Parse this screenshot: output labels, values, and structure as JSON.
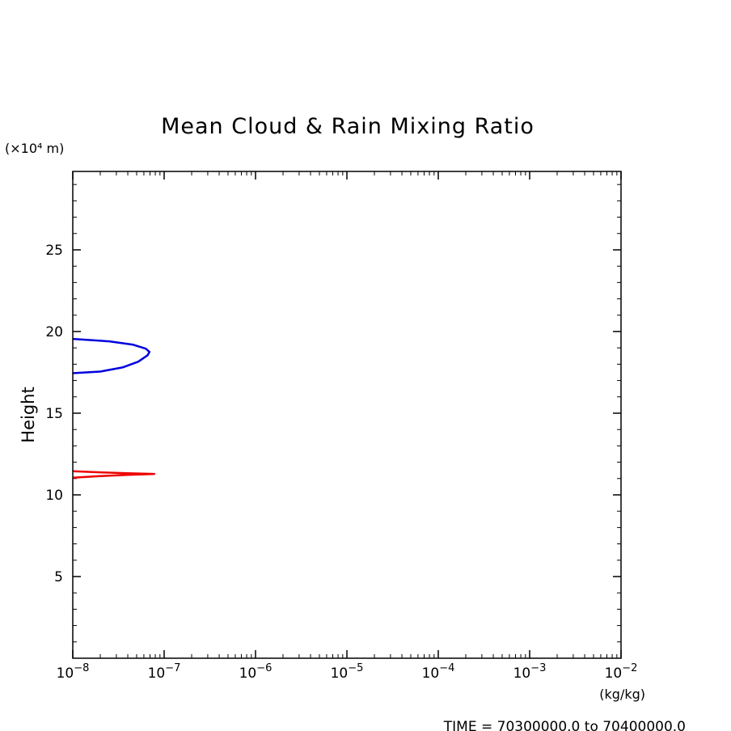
{
  "chart_data": {
    "type": "line",
    "title": "Mean Cloud & Rain Mixing Ratio",
    "ylabel": "Height",
    "y_unit": "(×10⁴ m)",
    "x_unit": "(kg/kg)",
    "xscale": "log",
    "xlim": [
      1e-08,
      0.01
    ],
    "ylim": [
      0,
      29.8
    ],
    "x_ticks": [
      {
        "value": 1e-08,
        "mantissa": "10",
        "exp": "−8"
      },
      {
        "value": 1e-07,
        "mantissa": "10",
        "exp": "−7"
      },
      {
        "value": 1e-06,
        "mantissa": "10",
        "exp": "−6"
      },
      {
        "value": 1e-05,
        "mantissa": "10",
        "exp": "−5"
      },
      {
        "value": 0.0001,
        "mantissa": "10",
        "exp": "−4"
      },
      {
        "value": 0.001,
        "mantissa": "10",
        "exp": "−3"
      },
      {
        "value": 0.01,
        "mantissa": "10",
        "exp": "−2"
      }
    ],
    "y_ticks": [
      {
        "value": 5,
        "label": "5"
      },
      {
        "value": 10,
        "label": "10"
      },
      {
        "value": 15,
        "label": "15"
      },
      {
        "value": 20,
        "label": "20"
      },
      {
        "value": 25,
        "label": "25"
      }
    ],
    "grid": false,
    "series": [
      {
        "color": "#0000dd",
        "points": [
          [
            1e-08,
            17.45
          ],
          [
            2e-08,
            17.55
          ],
          [
            3.5e-08,
            17.8
          ],
          [
            5.2e-08,
            18.15
          ],
          [
            6.6e-08,
            18.55
          ],
          [
            6.9e-08,
            18.75
          ],
          [
            6.3e-08,
            18.95
          ],
          [
            4.5e-08,
            19.2
          ],
          [
            2.5e-08,
            19.4
          ],
          [
            1e-08,
            19.55
          ]
        ]
      },
      {
        "color": "#ee0000",
        "points": [
          [
            1e-08,
            11.05
          ],
          [
            2e-08,
            11.15
          ],
          [
            4e-08,
            11.22
          ],
          [
            7.8e-08,
            11.28
          ],
          [
            4e-08,
            11.32
          ],
          [
            2e-08,
            11.38
          ],
          [
            1e-08,
            11.45
          ]
        ]
      }
    ],
    "footer": "TIME = 70300000.0 to 70400000.0"
  }
}
